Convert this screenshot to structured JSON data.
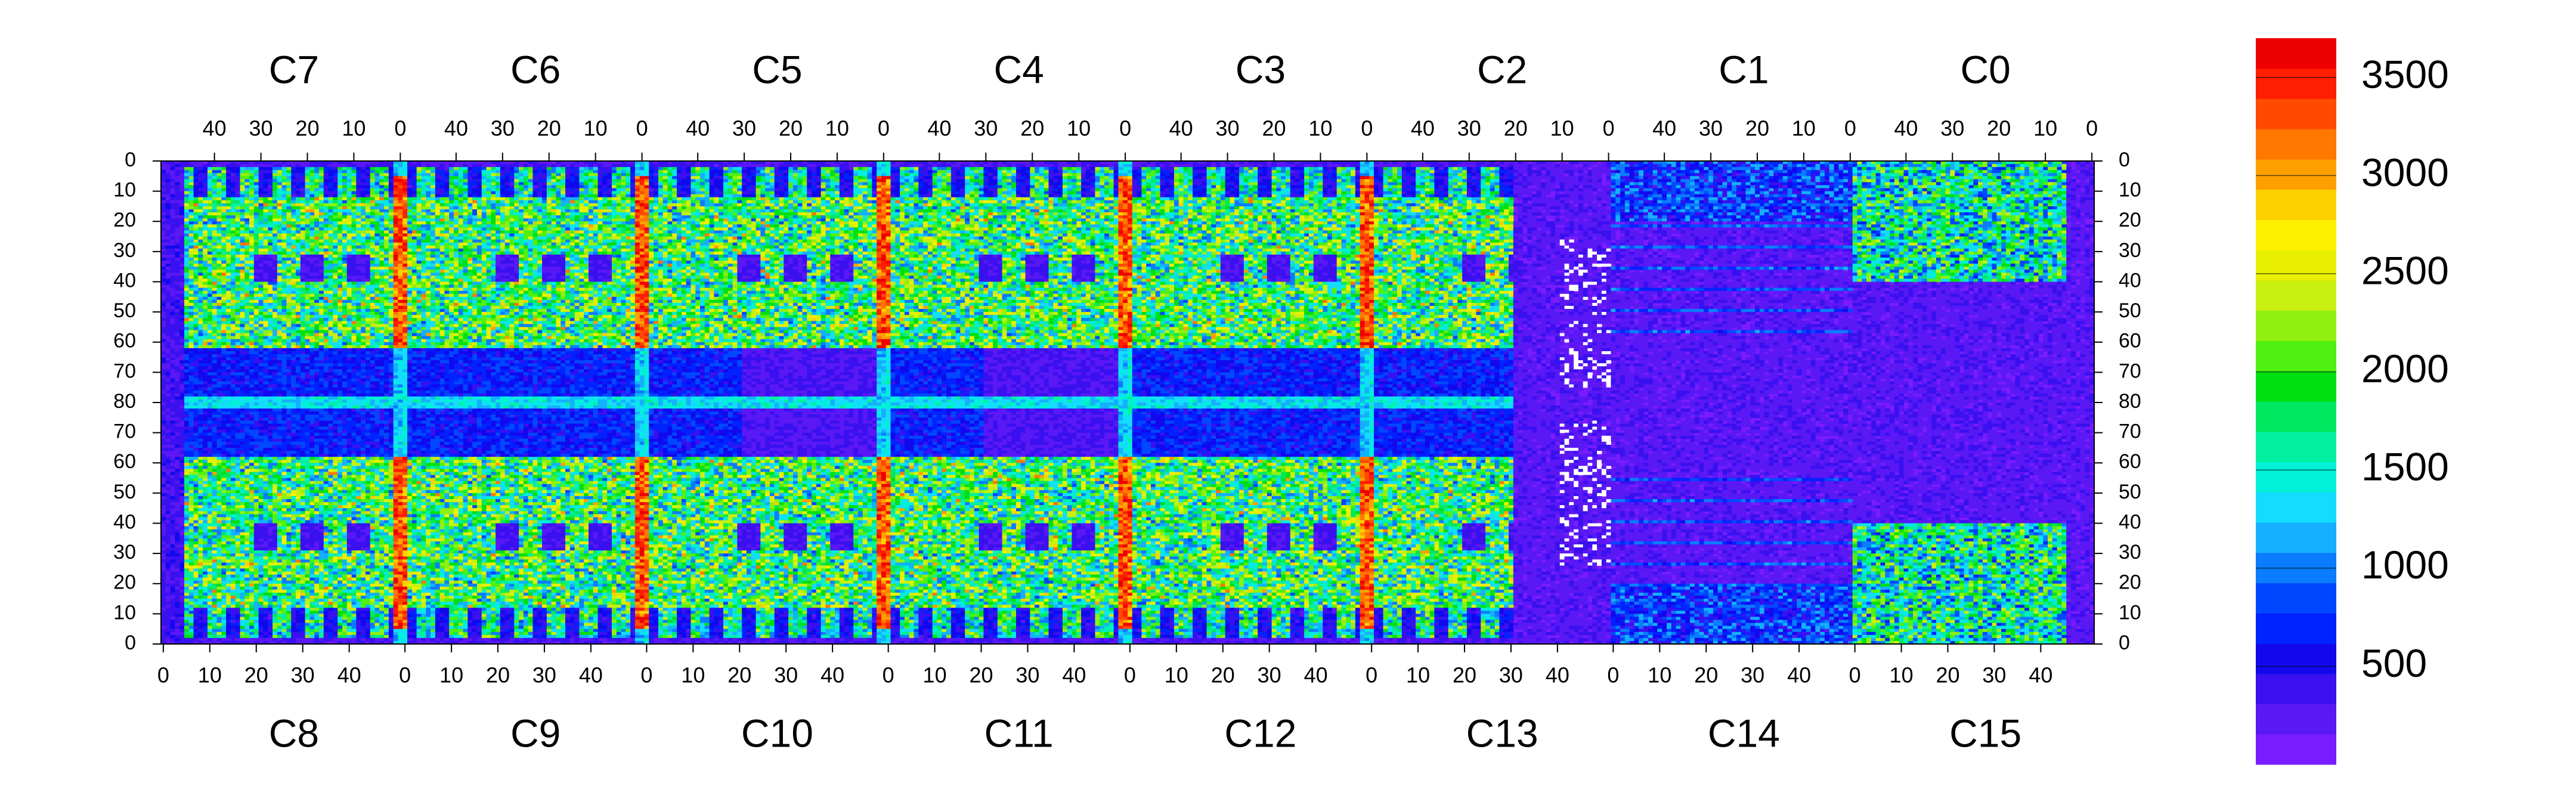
{
  "chart_data": {
    "type": "heatmap",
    "title": "",
    "xlabel": "",
    "ylabel": "",
    "top_chip_labels": [
      "C7",
      "C6",
      "C5",
      "C4",
      "C3",
      "C2",
      "C1",
      "C0"
    ],
    "bottom_chip_labels": [
      "C8",
      "C9",
      "C10",
      "C11",
      "C12",
      "C13",
      "C14",
      "C15"
    ],
    "top_axis": {
      "note": "per chip, column index decreasing left to right",
      "tick_labels": [
        "40",
        "30",
        "20",
        "10",
        "0"
      ],
      "columns_per_chip": 52
    },
    "bottom_axis": {
      "note": "per chip, column index increasing left to right",
      "tick_labels": [
        "0",
        "10",
        "20",
        "30",
        "40"
      ],
      "columns_per_chip": 52
    },
    "y_axis_upper": {
      "range": [
        0,
        80
      ],
      "reversed": true
    },
    "y_axis_lower": {
      "range": [
        80,
        0
      ],
      "reversed": false
    },
    "y_tick_labels": [
      "0",
      "10",
      "20",
      "30",
      "40",
      "50",
      "60",
      "70",
      "80",
      "70",
      "60",
      "50",
      "40",
      "30",
      "20",
      "10",
      "0"
    ],
    "zlim": [
      0,
      3700
    ],
    "colorbar": {
      "tick_labels": [
        "500",
        "1000",
        "1500",
        "2000",
        "2500",
        "3000",
        "3500"
      ],
      "tick_values": [
        500,
        1000,
        1500,
        2000,
        2500,
        3000,
        3500
      ],
      "colors": [
        "#7a1cff",
        "#5a18f5",
        "#3a10f0",
        "#1208ee",
        "#0022ff",
        "#0048ff",
        "#0a7cff",
        "#14b0ff",
        "#14dcff",
        "#00f0d8",
        "#00f0a0",
        "#00e860",
        "#00e010",
        "#50f010",
        "#90f010",
        "#c8f010",
        "#e8f000",
        "#fff000",
        "#ffd000",
        "#ffa000",
        "#ff7800",
        "#ff4a00",
        "#ff1e00",
        "#ee0000"
      ]
    },
    "grid": false,
    "legend": "colorbar right",
    "regions": {
      "hot_columns_at_chip_boundaries": [
        0,
        1,
        2,
        3,
        4,
        5
      ],
      "quiet_chips": [
        "C13",
        "C14",
        "C15"
      ],
      "low_occupancy_band_rows": [
        64,
        80
      ],
      "white_cells_region": "C13/C14 boundary, rows 45-80 and 80-45"
    }
  }
}
